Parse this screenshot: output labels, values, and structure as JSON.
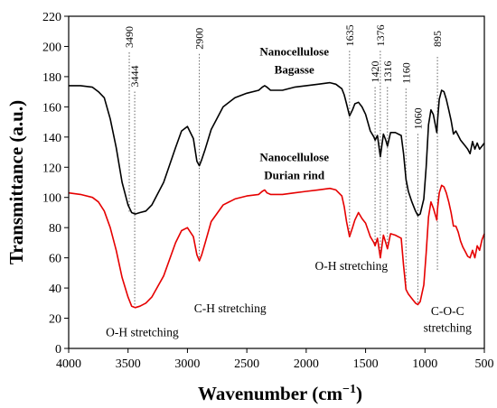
{
  "chart_data": {
    "type": "line",
    "xlabel": "Wavenumber (cm",
    "xlabel_sup": "−1",
    "xlabel_close": ")",
    "ylabel": "Transmittance (a.u.)",
    "xlim": [
      4000,
      500
    ],
    "x_reversed": true,
    "ylim": [
      0,
      220
    ],
    "xticks": [
      "4000",
      "3500",
      "3000",
      "2500",
      "2000",
      "1500",
      "1000",
      "500"
    ],
    "yticks": [
      "0",
      "20",
      "40",
      "60",
      "80",
      "100",
      "120",
      "140",
      "160",
      "180",
      "200",
      "220"
    ],
    "series": [
      {
        "name_line1": "Nanocellulose",
        "name_line2": "Bagasse",
        "color": "#000000",
        "x": [
          4000,
          3900,
          3800,
          3750,
          3700,
          3650,
          3600,
          3550,
          3500,
          3470,
          3440,
          3400,
          3350,
          3300,
          3200,
          3100,
          3050,
          3000,
          2950,
          2920,
          2900,
          2880,
          2850,
          2800,
          2700,
          2600,
          2500,
          2400,
          2370,
          2350,
          2330,
          2300,
          2200,
          2100,
          2000,
          1900,
          1800,
          1750,
          1700,
          1680,
          1660,
          1635,
          1610,
          1590,
          1560,
          1530,
          1500,
          1460,
          1430,
          1420,
          1400,
          1376,
          1350,
          1330,
          1316,
          1290,
          1250,
          1200,
          1180,
          1160,
          1140,
          1110,
          1080,
          1060,
          1040,
          1010,
          990,
          970,
          950,
          930,
          900,
          895,
          880,
          860,
          840,
          820,
          800,
          780,
          760,
          740,
          720,
          700,
          680,
          660,
          640,
          620,
          600,
          580,
          560,
          540,
          520,
          500
        ],
        "y": [
          174,
          174,
          173,
          170,
          166,
          152,
          133,
          110,
          95,
          90,
          89,
          90,
          91,
          95,
          110,
          133,
          144,
          147,
          139,
          124,
          121,
          125,
          132,
          145,
          160,
          166,
          169,
          171,
          173,
          174,
          173,
          171,
          171,
          173,
          174,
          175,
          176,
          175,
          172,
          168,
          162,
          154,
          158,
          162,
          163,
          160,
          155,
          144,
          140,
          138,
          141,
          127,
          142,
          138,
          134,
          143,
          143,
          141,
          129,
          112,
          104,
          97,
          91,
          88,
          89,
          99,
          120,
          148,
          158,
          155,
          143,
          150,
          165,
          171,
          170,
          165,
          158,
          151,
          142,
          144,
          141,
          138,
          136,
          134,
          132,
          129,
          137,
          132,
          136,
          132,
          134,
          136
        ],
        "curve_label_line1": "Nanocellulose",
        "curve_label_line2": "Bagasse"
      },
      {
        "color": "#e60000",
        "x": [
          4000,
          3900,
          3800,
          3750,
          3700,
          3650,
          3600,
          3550,
          3500,
          3470,
          3440,
          3400,
          3350,
          3300,
          3200,
          3100,
          3050,
          3000,
          2950,
          2920,
          2900,
          2880,
          2850,
          2800,
          2700,
          2600,
          2500,
          2400,
          2370,
          2350,
          2330,
          2300,
          2200,
          2100,
          2000,
          1900,
          1800,
          1750,
          1700,
          1680,
          1660,
          1635,
          1610,
          1590,
          1560,
          1530,
          1500,
          1460,
          1430,
          1420,
          1400,
          1376,
          1350,
          1330,
          1316,
          1290,
          1250,
          1200,
          1180,
          1160,
          1140,
          1110,
          1080,
          1060,
          1040,
          1010,
          990,
          970,
          950,
          930,
          900,
          895,
          880,
          860,
          840,
          820,
          800,
          780,
          760,
          740,
          720,
          700,
          680,
          660,
          640,
          620,
          600,
          580,
          560,
          540,
          520,
          500
        ],
        "y": [
          103,
          102,
          100,
          97,
          91,
          80,
          65,
          47,
          34,
          28,
          27,
          28,
          30,
          34,
          48,
          70,
          78,
          80,
          74,
          62,
          58,
          62,
          70,
          84,
          95,
          99,
          101,
          102,
          104,
          105,
          103,
          102,
          102,
          103,
          104,
          105,
          106,
          105,
          101,
          94,
          84,
          74,
          80,
          85,
          90,
          86,
          83,
          74,
          70,
          68,
          73,
          60,
          75,
          70,
          66,
          76,
          75,
          73,
          55,
          39,
          36,
          33,
          30,
          29,
          31,
          42,
          63,
          87,
          97,
          93,
          85,
          92,
          103,
          108,
          107,
          103,
          97,
          90,
          81,
          81,
          77,
          71,
          67,
          64,
          61,
          60,
          65,
          60,
          68,
          65,
          72,
          76
        ],
        "curve_label_line1": "Nanocellulose",
        "curve_label_line2": "Durian rind"
      }
    ],
    "peak_lines": [
      {
        "x": 3490,
        "label": "3490",
        "y_top": 214,
        "y_bottom": 90,
        "label_y": 214,
        "side": "top"
      },
      {
        "x": 3444,
        "label": "3444",
        "y_top": 188,
        "y_bottom": 28,
        "label_y": 188,
        "side": "top"
      },
      {
        "x": 2900,
        "label": "2900",
        "y_top": 213,
        "y_bottom": 58,
        "label_y": 213,
        "side": "top"
      },
      {
        "x": 1635,
        "label": "1635",
        "y_top": 215,
        "y_bottom": 74,
        "label_y": 215,
        "side": "top"
      },
      {
        "x": 1420,
        "label": "1420",
        "y_top": 191,
        "y_bottom": 68,
        "label_y": 191,
        "side": "top"
      },
      {
        "x": 1376,
        "label": "1376",
        "y_top": 215,
        "y_bottom": 60,
        "label_y": 215,
        "side": "top"
      },
      {
        "x": 1316,
        "label": "1316",
        "y_top": 191,
        "y_bottom": 66,
        "label_y": 191,
        "side": "top"
      },
      {
        "x": 1160,
        "label": "1160",
        "y_top": 190,
        "y_bottom": 39,
        "label_y": 190,
        "side": "top"
      },
      {
        "x": 1060,
        "label": "1060",
        "y_top": 160,
        "y_bottom": 29,
        "label_y": 160,
        "side": "top"
      },
      {
        "x": 895,
        "label": "895",
        "y_top": 211,
        "y_bottom": 52,
        "label_y": 211,
        "side": "top"
      }
    ],
    "band_annotations": [
      {
        "text": "O-H stretching",
        "x": 3380,
        "y": 8
      },
      {
        "text": "C-H stretching",
        "x": 2640,
        "y": 24
      },
      {
        "text": "O-H stretching",
        "x": 1620,
        "y": 52
      },
      {
        "text": "C-O-C",
        "x": 810,
        "y": 22
      },
      {
        "text": "stretching",
        "x": 810,
        "y": 11
      }
    ],
    "series_annotations": [
      {
        "line1": "Nanocellulose",
        "line2": "Bagasse",
        "x": 2100,
        "y1": 194,
        "y2": 182
      },
      {
        "line1": "Nanocellulose",
        "line2": "Durian rind",
        "x": 2100,
        "y1": 124,
        "y2": 112
      }
    ]
  }
}
